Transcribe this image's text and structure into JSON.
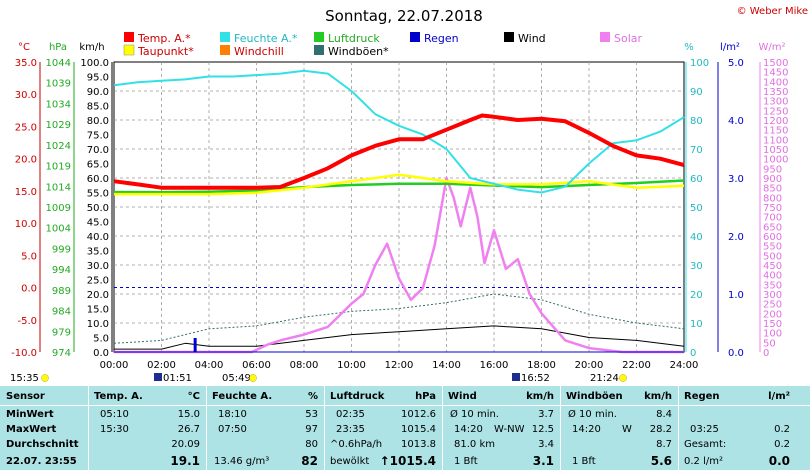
{
  "title": "Sonntag, 22.07.2018",
  "credit": "© Weber Mike",
  "legend": [
    {
      "label": "Temp. A.*",
      "color": "#ff0000"
    },
    {
      "label": "Feuchte A.*",
      "color": "#33e0e6"
    },
    {
      "label": "Luftdruck",
      "color": "#22cc22"
    },
    {
      "label": "Regen",
      "color": "#0000cc"
    },
    {
      "label": "Wind",
      "color": "#000000"
    },
    {
      "label": "Solar",
      "color": "#f080f0"
    },
    {
      "label": "Taupunkt*",
      "color": "#ffff00"
    },
    {
      "label": "Windchill",
      "color": "#ff8000"
    },
    {
      "label": "Windböen*",
      "color": "#2f6f6f"
    }
  ],
  "units": {
    "temp": "°C",
    "press": "hPa",
    "wind": "km/h",
    "hum": "%",
    "rain": "l/m²",
    "solar": "W/m²"
  },
  "axes": {
    "temp_ticks": [
      "35.0",
      "30.0",
      "25.0",
      "20.0",
      "15.0",
      "10.0",
      "5.0",
      "0.0",
      "-5.0",
      "-10.0"
    ],
    "press_ticks": [
      "1044",
      "1039",
      "1034",
      "1029",
      "1024",
      "1019",
      "1014",
      "1009",
      "1004",
      "999",
      "994",
      "989",
      "984",
      "979",
      "974"
    ],
    "wind_ticks": [
      "100.0",
      "95.0",
      "90.0",
      "85.0",
      "80.0",
      "75.0",
      "70.0",
      "65.0",
      "60.0",
      "55.0",
      "50.0",
      "45.0",
      "40.0",
      "35.0",
      "30.0",
      "25.0",
      "20.0",
      "15.0",
      "10.0",
      "5.0",
      "0.0"
    ],
    "hum_ticks": [
      "100",
      "90",
      "80",
      "70",
      "60",
      "50",
      "40",
      "30",
      "20",
      "10",
      "0"
    ],
    "rain_ticks": [
      "5.0",
      "4.0",
      "3.0",
      "2.0",
      "1.0",
      "0.0"
    ],
    "solar_ticks": [
      "1500",
      "1450",
      "1400",
      "1350",
      "1300",
      "1250",
      "1200",
      "1150",
      "1100",
      "1050",
      "1000",
      "950",
      "900",
      "850",
      "800",
      "750",
      "700",
      "650",
      "600",
      "550",
      "500",
      "450",
      "400",
      "350",
      "300",
      "250",
      "200",
      "150",
      "100",
      "50",
      "0"
    ],
    "x_ticks": [
      "00:00",
      "02:00",
      "04:00",
      "06:00",
      "08:00",
      "10:00",
      "12:00",
      "14:00",
      "16:00",
      "18:00",
      "20:00",
      "22:00",
      "24:00"
    ]
  },
  "sun_markers": {
    "sunrise": "05:49",
    "sunset": "21:24",
    "left": "15:35",
    "moon1": "01:51",
    "moon2": "16:52"
  },
  "chart_data": {
    "type": "line",
    "x_unit": "hour",
    "xlim": [
      0,
      24
    ],
    "series": [
      {
        "name": "Temp. A.*",
        "unit": "°C",
        "color": "#ff0000",
        "x": [
          0,
          1,
          2,
          3,
          4,
          5,
          6,
          7,
          8,
          9,
          10,
          11,
          12,
          13,
          14,
          15,
          15.5,
          16,
          17,
          18,
          19,
          20,
          21,
          22,
          23,
          24
        ],
        "y": [
          16.5,
          16,
          15.5,
          15.5,
          15.5,
          15.5,
          15.5,
          15.6,
          17,
          18.5,
          20.5,
          22,
          23,
          23,
          24.5,
          26,
          26.7,
          26.5,
          26,
          26.2,
          25.8,
          24,
          22,
          20.5,
          20,
          19
        ]
      },
      {
        "name": "Feuchte A.*",
        "unit": "%",
        "color": "#33e0e6",
        "x": [
          0,
          1,
          2,
          3,
          4,
          5,
          6,
          7,
          8,
          9,
          10,
          11,
          12,
          13,
          14,
          14.5,
          15,
          16,
          17,
          18,
          19,
          20,
          21,
          22,
          23,
          24
        ],
        "y": [
          92,
          93,
          93.5,
          94,
          95,
          95,
          95.5,
          96,
          97,
          96,
          90,
          82,
          78,
          75,
          70,
          65,
          60,
          58,
          56,
          55,
          57,
          65,
          72,
          73,
          76,
          81
        ]
      },
      {
        "name": "Taupunkt*",
        "unit": "°C",
        "color": "#ffff00",
        "x": [
          0,
          2,
          4,
          6,
          8,
          10,
          12,
          14,
          16,
          18,
          20,
          22,
          24
        ],
        "y": [
          14.5,
          14.5,
          14.5,
          14.7,
          15.5,
          16.5,
          17.5,
          16.5,
          16,
          16,
          16.5,
          15.5,
          15.8
        ]
      },
      {
        "name": "Luftdruck",
        "unit": "hPa",
        "color": "#22cc22",
        "x": [
          0,
          2,
          4,
          6,
          8,
          10,
          12,
          14,
          16,
          18,
          20,
          22,
          24
        ],
        "y": [
          1012.6,
          1012.6,
          1012.7,
          1013.0,
          1013.8,
          1014.3,
          1014.6,
          1014.6,
          1014.2,
          1013.8,
          1014.3,
          1014.8,
          1015.4
        ]
      },
      {
        "name": "Solar",
        "unit": "W/m²",
        "color": "#f080f0",
        "x": [
          0,
          5.8,
          6.5,
          7,
          8,
          9,
          10,
          10.5,
          11,
          11.5,
          12,
          12.5,
          13,
          13.5,
          14,
          14.3,
          14.6,
          15,
          15.3,
          15.6,
          16,
          16.5,
          17,
          17.5,
          18,
          18.5,
          19,
          20,
          21.4,
          24
        ],
        "y": [
          0,
          0,
          40,
          60,
          90,
          130,
          250,
          300,
          450,
          560,
          380,
          270,
          330,
          550,
          900,
          800,
          650,
          850,
          700,
          460,
          630,
          430,
          480,
          300,
          200,
          130,
          60,
          20,
          0,
          0
        ]
      },
      {
        "name": "Wind",
        "unit": "km/h",
        "color": "#000000",
        "x": [
          0,
          2,
          3,
          4,
          6,
          8,
          10,
          12,
          14,
          16,
          18,
          20,
          22,
          24
        ],
        "y": [
          1,
          1,
          3,
          2,
          2,
          4,
          6,
          7,
          8,
          9,
          8,
          5,
          4,
          2
        ]
      },
      {
        "name": "Windböen*",
        "unit": "km/h",
        "color": "#2f6f6f",
        "x": [
          0,
          2,
          4,
          6,
          8,
          10,
          12,
          14,
          16,
          18,
          20,
          22,
          24
        ],
        "y": [
          3,
          4,
          8,
          9,
          12,
          14,
          15,
          17,
          20,
          18,
          13,
          10,
          8
        ]
      },
      {
        "name": "Regen",
        "unit": "l/m²",
        "color": "#0000cc",
        "x": [
          0,
          24
        ],
        "y": [
          0,
          0
        ]
      }
    ]
  },
  "stats": {
    "headers": [
      "Sensor",
      "Temp. A.",
      "°C",
      "Feuchte A.",
      "%",
      "Luftdruck",
      "hPa",
      "Wind",
      "km/h",
      "Windböen",
      "km/h",
      "Regen",
      "l/m²"
    ],
    "row_labels": [
      "MinWert",
      "MaxWert",
      "Durchschnitt",
      "22.07. 23:55"
    ],
    "temp": [
      [
        "05:10",
        "15.0"
      ],
      [
        "15:30",
        "26.7"
      ],
      [
        "",
        "20.09"
      ],
      [
        "",
        "19.1"
      ]
    ],
    "hum": [
      [
        "18:10",
        "53"
      ],
      [
        "07:50",
        "97"
      ],
      [
        "",
        "80"
      ],
      [
        "13.46 g/m³",
        "82"
      ]
    ],
    "press": [
      [
        "02:35",
        "1012.6"
      ],
      [
        "23:35",
        "1015.4"
      ],
      [
        "^0.6hPa/h",
        "1013.8"
      ],
      [
        "bewölkt",
        "↑1015.4"
      ]
    ],
    "wind": [
      [
        "Ø 10 min.",
        "",
        "3.7"
      ],
      [
        "14:20",
        "W-NW",
        "12.5"
      ],
      [
        "81.0 km",
        "",
        "3.4"
      ],
      [
        "1 Bft",
        "",
        "3.1"
      ]
    ],
    "gust": [
      [
        "Ø 10 min.",
        "",
        "8.4"
      ],
      [
        "14:20",
        "W",
        "28.2"
      ],
      [
        "",
        "",
        "8.7"
      ],
      [
        "1 Bft",
        "",
        "5.6"
      ]
    ],
    "rain": [
      [
        "",
        ""
      ],
      [
        "03:25",
        "0.2"
      ],
      [
        "Gesamt:",
        "0.2"
      ],
      [
        "0.2 l/m²",
        "0.0"
      ]
    ]
  }
}
